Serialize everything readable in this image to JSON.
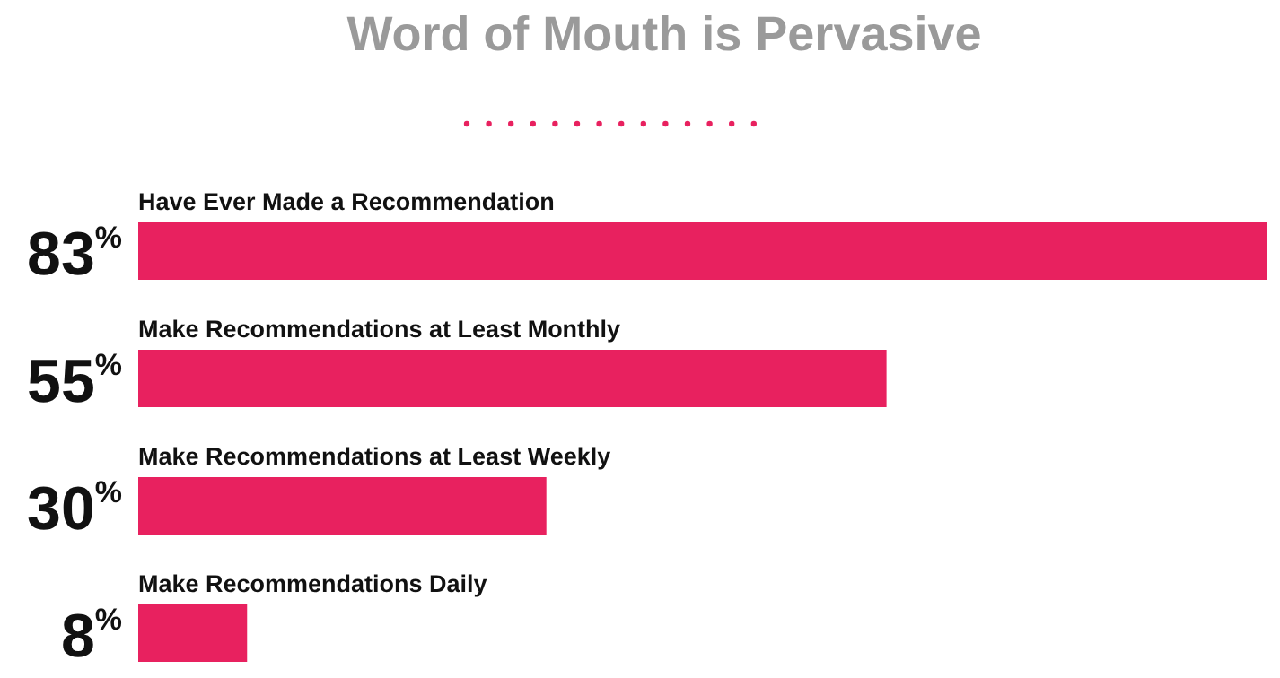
{
  "chart_data": {
    "type": "bar",
    "orientation": "horizontal",
    "title": "Word of Mouth is Pervasive",
    "categories": [
      "Have Ever Made a Recommendation",
      "Make Recommendations at Least Monthly",
      "Make Recommendations at Least Weekly",
      "Make Recommendations Daily"
    ],
    "values": [
      83,
      55,
      30,
      8
    ],
    "value_labels": [
      "83$^{%}$",
      "55$^{%}$",
      "30$^{%}$",
      "8$^{%}$"
    ],
    "color": "#e8215f"
  }
}
